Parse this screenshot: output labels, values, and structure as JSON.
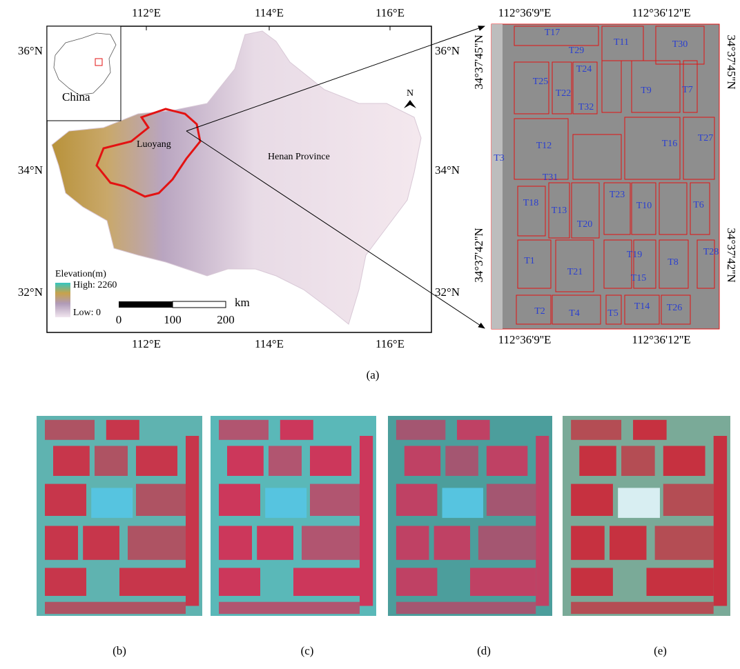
{
  "map_a": {
    "lon_top": [
      "112°E",
      "114°E",
      "116°E"
    ],
    "lon_bottom": [
      "112°E",
      "114°E",
      "116°E"
    ],
    "lat_left": [
      "36°N",
      "34°N",
      "32°N"
    ],
    "lat_right": [
      "36°N",
      "34°N",
      "32°N"
    ],
    "inset_label": "China",
    "city_label": "Luoyang",
    "province_label": "Henan Province",
    "north": "N",
    "legend_title": "Elevation(m)",
    "legend_high": "High: 2260",
    "legend_low": "Low: 0",
    "scale_labels": [
      "0",
      "100",
      "200"
    ],
    "scale_unit": "km"
  },
  "site_image": {
    "lon_top": [
      "112°36'9''E",
      "112°36'12''E"
    ],
    "lon_bottom": [
      "112°36'9''E",
      "112°36'12''E"
    ],
    "lat_left": [
      "34°37'45''N",
      "34°37'42''N"
    ],
    "lat_right": [
      "34°37'45''N",
      "34°37'42''N"
    ],
    "plot_labels": [
      "T1",
      "T2",
      "T3",
      "T4",
      "T5",
      "T6",
      "T7",
      "T8",
      "T9",
      "T10",
      "T11",
      "T12",
      "T13",
      "T14",
      "T15",
      "T16",
      "T17",
      "T18",
      "T19",
      "T20",
      "T21",
      "T22",
      "T23",
      "T24",
      "T25",
      "T26",
      "T27",
      "T28",
      "T29",
      "T30",
      "T31",
      "T32"
    ]
  },
  "captions": [
    "(a)",
    "(b)",
    "(c)",
    "(d)",
    "(e)"
  ]
}
